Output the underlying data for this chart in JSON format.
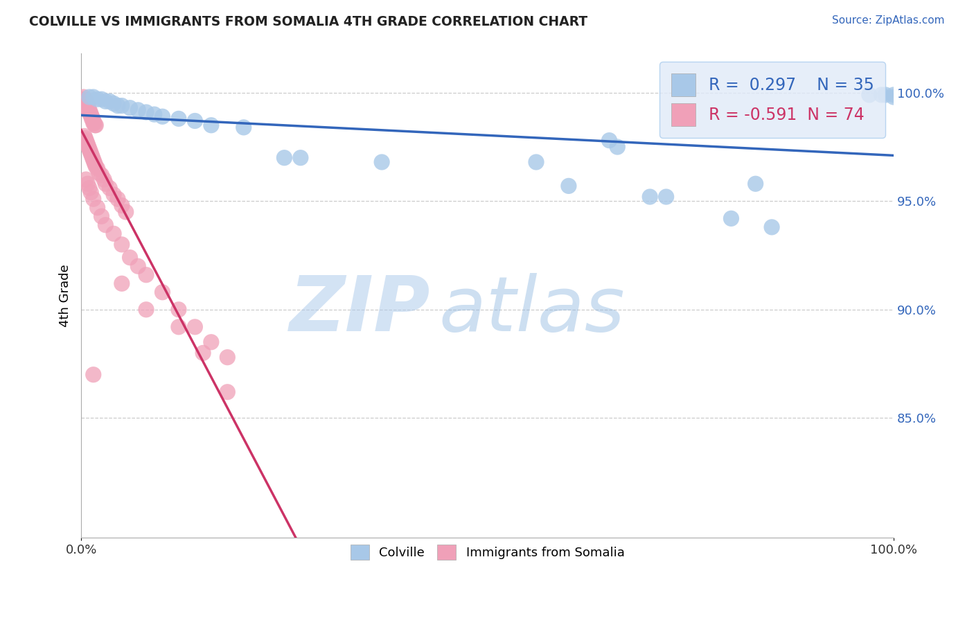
{
  "title": "COLVILLE VS IMMIGRANTS FROM SOMALIA 4TH GRADE CORRELATION CHART",
  "source": "Source: ZipAtlas.com",
  "ylabel": "4th Grade",
  "ytick_labels": [
    "85.0%",
    "90.0%",
    "95.0%",
    "100.0%"
  ],
  "ytick_values": [
    0.85,
    0.9,
    0.95,
    1.0
  ],
  "xlim": [
    0.0,
    1.0
  ],
  "ylim": [
    0.795,
    1.018
  ],
  "blue_R": 0.297,
  "blue_N": 35,
  "pink_R": -0.591,
  "pink_N": 74,
  "blue_color": "#a8c8e8",
  "pink_color": "#f0a0b8",
  "blue_line_color": "#3366bb",
  "pink_line_color": "#cc3366",
  "legend_box_color": "#e0eaf8",
  "watermark_color": "#c8daf0",
  "blue_dots": [
    [
      0.01,
      0.998
    ],
    [
      0.015,
      0.998
    ],
    [
      0.02,
      0.997
    ],
    [
      0.025,
      0.997
    ],
    [
      0.03,
      0.996
    ],
    [
      0.035,
      0.996
    ],
    [
      0.04,
      0.995
    ],
    [
      0.045,
      0.994
    ],
    [
      0.05,
      0.994
    ],
    [
      0.06,
      0.993
    ],
    [
      0.07,
      0.992
    ],
    [
      0.08,
      0.991
    ],
    [
      0.09,
      0.99
    ],
    [
      0.1,
      0.989
    ],
    [
      0.12,
      0.988
    ],
    [
      0.14,
      0.987
    ],
    [
      0.16,
      0.985
    ],
    [
      0.2,
      0.984
    ],
    [
      0.25,
      0.97
    ],
    [
      0.27,
      0.97
    ],
    [
      0.37,
      0.968
    ],
    [
      0.56,
      0.968
    ],
    [
      0.6,
      0.957
    ],
    [
      0.65,
      0.978
    ],
    [
      0.66,
      0.975
    ],
    [
      0.7,
      0.952
    ],
    [
      0.72,
      0.952
    ],
    [
      0.8,
      0.942
    ],
    [
      0.83,
      0.958
    ],
    [
      0.85,
      0.938
    ],
    [
      0.97,
      0.999
    ],
    [
      0.985,
      0.999
    ],
    [
      0.99,
      0.999
    ],
    [
      1.0,
      0.999
    ],
    [
      1.0,
      0.998
    ]
  ],
  "pink_dots": [
    [
      0.003,
      0.998
    ],
    [
      0.004,
      0.997
    ],
    [
      0.005,
      0.997
    ],
    [
      0.005,
      0.996
    ],
    [
      0.006,
      0.996
    ],
    [
      0.006,
      0.995
    ],
    [
      0.007,
      0.995
    ],
    [
      0.007,
      0.994
    ],
    [
      0.008,
      0.994
    ],
    [
      0.008,
      0.993
    ],
    [
      0.009,
      0.993
    ],
    [
      0.009,
      0.992
    ],
    [
      0.01,
      0.992
    ],
    [
      0.01,
      0.991
    ],
    [
      0.011,
      0.991
    ],
    [
      0.011,
      0.99
    ],
    [
      0.012,
      0.99
    ],
    [
      0.013,
      0.989
    ],
    [
      0.013,
      0.988
    ],
    [
      0.014,
      0.988
    ],
    [
      0.015,
      0.987
    ],
    [
      0.015,
      0.986
    ],
    [
      0.016,
      0.986
    ],
    [
      0.017,
      0.985
    ],
    [
      0.018,
      0.985
    ],
    [
      0.004,
      0.98
    ],
    [
      0.005,
      0.979
    ],
    [
      0.006,
      0.978
    ],
    [
      0.007,
      0.977
    ],
    [
      0.008,
      0.976
    ],
    [
      0.009,
      0.975
    ],
    [
      0.01,
      0.974
    ],
    [
      0.011,
      0.973
    ],
    [
      0.012,
      0.972
    ],
    [
      0.013,
      0.971
    ],
    [
      0.014,
      0.97
    ],
    [
      0.015,
      0.969
    ],
    [
      0.016,
      0.968
    ],
    [
      0.017,
      0.967
    ],
    [
      0.018,
      0.966
    ],
    [
      0.02,
      0.965
    ],
    [
      0.022,
      0.963
    ],
    [
      0.025,
      0.962
    ],
    [
      0.028,
      0.96
    ],
    [
      0.03,
      0.958
    ],
    [
      0.035,
      0.956
    ],
    [
      0.04,
      0.953
    ],
    [
      0.045,
      0.951
    ],
    [
      0.05,
      0.948
    ],
    [
      0.055,
      0.945
    ],
    [
      0.006,
      0.96
    ],
    [
      0.008,
      0.958
    ],
    [
      0.01,
      0.956
    ],
    [
      0.012,
      0.954
    ],
    [
      0.015,
      0.951
    ],
    [
      0.02,
      0.947
    ],
    [
      0.025,
      0.943
    ],
    [
      0.03,
      0.939
    ],
    [
      0.04,
      0.935
    ],
    [
      0.05,
      0.93
    ],
    [
      0.06,
      0.924
    ],
    [
      0.07,
      0.92
    ],
    [
      0.08,
      0.916
    ],
    [
      0.1,
      0.908
    ],
    [
      0.12,
      0.9
    ],
    [
      0.14,
      0.892
    ],
    [
      0.16,
      0.885
    ],
    [
      0.18,
      0.878
    ],
    [
      0.05,
      0.912
    ],
    [
      0.08,
      0.9
    ],
    [
      0.12,
      0.892
    ],
    [
      0.15,
      0.88
    ],
    [
      0.015,
      0.87
    ],
    [
      0.18,
      0.862
    ]
  ]
}
